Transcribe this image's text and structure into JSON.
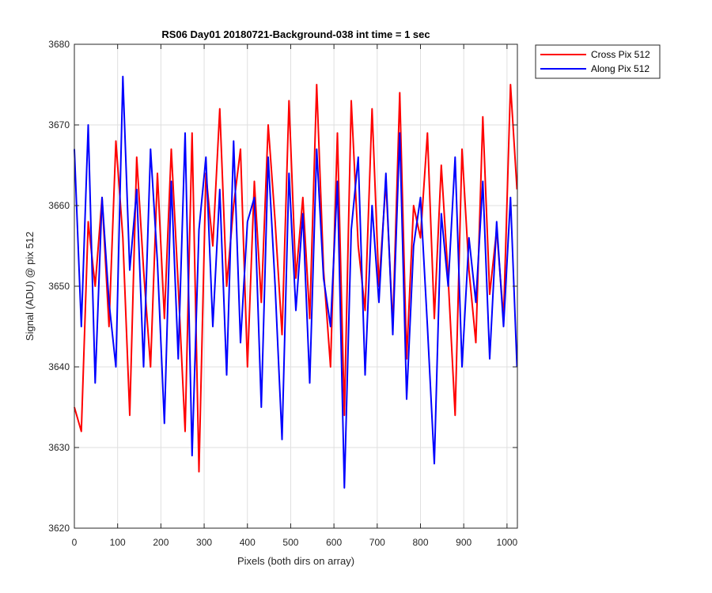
{
  "chart_data": {
    "type": "line",
    "title": "RS06 Day01 20180721-Background-038 int time = 1 sec",
    "xlabel": "Pixels (both dirs on array)",
    "ylabel": "Signal (ADU) @ pix 512",
    "xlim": [
      0,
      1024
    ],
    "ylim": [
      3620,
      3680
    ],
    "xticks": [
      "0",
      "100",
      "200",
      "300",
      "400",
      "500",
      "600",
      "700",
      "800",
      "900",
      "1000"
    ],
    "yticks": [
      "3620",
      "3630",
      "3640",
      "3650",
      "3660",
      "3670",
      "3680"
    ],
    "grid": true,
    "legend_position": "outside-top-right",
    "series": [
      {
        "name": "Cross Pix 512",
        "color": "#ff0000",
        "x": [
          0,
          16,
          32,
          48,
          64,
          80,
          96,
          112,
          128,
          144,
          160,
          176,
          192,
          208,
          224,
          240,
          256,
          272,
          288,
          304,
          320,
          336,
          352,
          368,
          384,
          400,
          416,
          432,
          448,
          464,
          480,
          496,
          512,
          528,
          544,
          560,
          576,
          592,
          608,
          624,
          640,
          656,
          672,
          688,
          704,
          720,
          736,
          752,
          768,
          784,
          800,
          816,
          832,
          848,
          864,
          880,
          896,
          912,
          928,
          944,
          960,
          976,
          992,
          1008,
          1023
        ],
        "values": [
          3635,
          3632,
          3658,
          3650,
          3661,
          3645,
          3668,
          3656,
          3634,
          3666,
          3652,
          3640,
          3664,
          3646,
          3667,
          3650,
          3632,
          3669,
          3627,
          3664,
          3655,
          3672,
          3650,
          3660,
          3667,
          3640,
          3663,
          3648,
          3670,
          3658,
          3644,
          3673,
          3651,
          3661,
          3646,
          3675,
          3652,
          3640,
          3669,
          3634,
          3673,
          3655,
          3647,
          3672,
          3650,
          3663,
          3645,
          3674,
          3641,
          3660,
          3656,
          3669,
          3646,
          3665,
          3651,
          3634,
          3667,
          3652,
          3643,
          3671,
          3649,
          3657,
          3646,
          3675,
          3662
        ]
      },
      {
        "name": "Along Pix 512",
        "color": "#0000ff",
        "x": [
          0,
          16,
          32,
          48,
          64,
          80,
          96,
          112,
          128,
          144,
          160,
          176,
          192,
          208,
          224,
          240,
          256,
          272,
          288,
          304,
          320,
          336,
          352,
          368,
          384,
          400,
          416,
          432,
          448,
          464,
          480,
          496,
          512,
          528,
          544,
          560,
          576,
          592,
          608,
          624,
          640,
          656,
          672,
          688,
          704,
          720,
          736,
          752,
          768,
          784,
          800,
          816,
          832,
          848,
          864,
          880,
          896,
          912,
          928,
          944,
          960,
          976,
          992,
          1008,
          1023
        ],
        "values": [
          3667,
          3645,
          3670,
          3638,
          3661,
          3648,
          3640,
          3676,
          3652,
          3662,
          3640,
          3667,
          3653,
          3633,
          3663,
          3641,
          3669,
          3629,
          3657,
          3666,
          3645,
          3662,
          3639,
          3668,
          3643,
          3658,
          3661,
          3635,
          3666,
          3650,
          3631,
          3664,
          3647,
          3659,
          3638,
          3667,
          3651,
          3645,
          3663,
          3625,
          3657,
          3666,
          3639,
          3660,
          3648,
          3664,
          3644,
          3669,
          3636,
          3655,
          3661,
          3645,
          3628,
          3659,
          3650,
          3666,
          3640,
          3656,
          3648,
          3663,
          3641,
          3658,
          3645,
          3661,
          3640
        ]
      }
    ]
  }
}
